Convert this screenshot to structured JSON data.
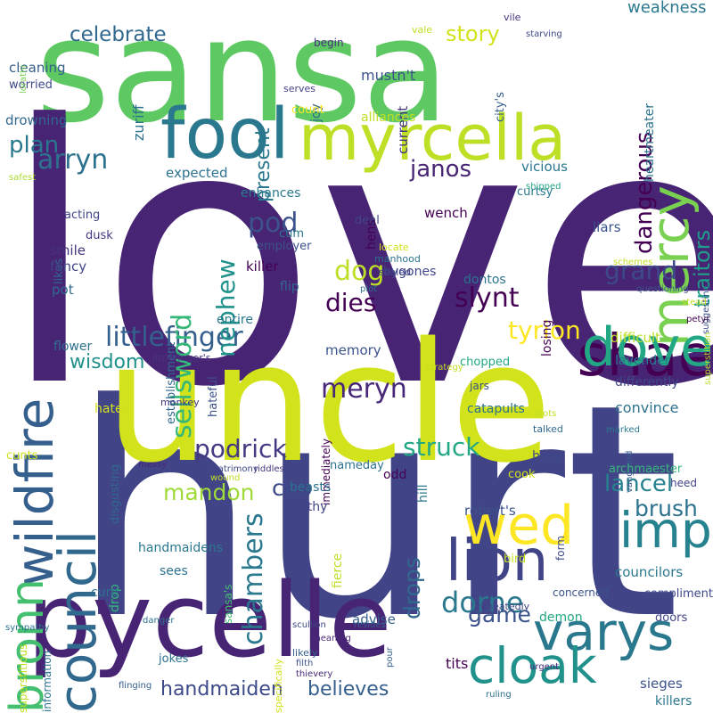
{
  "palette": {
    "purple": "#482475",
    "indigo": "#414487",
    "blue": "#355f8d",
    "steel": "#2a788e",
    "teal": "#21918c",
    "sea": "#22a884",
    "green": "#44bf70",
    "lime": "#7ad151",
    "yellow": "#d2e21b"
  },
  "words": [
    {
      "text": "sansa",
      "color": "#5ec962"
    },
    {
      "text": "love",
      "color": "#482475"
    },
    {
      "text": "hurt",
      "color": "#414487"
    },
    {
      "text": "uncle",
      "color": "#d2e21b"
    },
    {
      "text": "pycelle",
      "color": "#482475"
    },
    {
      "text": "fool",
      "color": "#2a788e"
    },
    {
      "text": "myrcella",
      "color": "#bddf26"
    },
    {
      "text": "mercy",
      "color": "#7ad151"
    },
    {
      "text": "wildfire",
      "color": "#355f8d"
    },
    {
      "text": "council",
      "color": "#31688e"
    },
    {
      "text": "bronn",
      "color": "#44bf70"
    },
    {
      "text": "shae",
      "color": "#440154"
    },
    {
      "text": "varys",
      "color": "#2a788e"
    },
    {
      "text": "dove",
      "color": "#22a884"
    },
    {
      "text": "imp",
      "color": "#26828e"
    },
    {
      "text": "wed",
      "color": "#fde725"
    },
    {
      "text": "lion",
      "color": "#414487"
    },
    {
      "text": "cloak",
      "color": "#21918c"
    },
    {
      "text": "dorne",
      "color": "#2a788e"
    },
    {
      "text": "littlefinger",
      "color": "#355f8d"
    },
    {
      "text": "podrick",
      "color": "#443983"
    },
    {
      "text": "struck",
      "color": "#22a884"
    },
    {
      "text": "meryn",
      "color": "#482878"
    },
    {
      "text": "tyrion",
      "color": "#fde725"
    },
    {
      "text": "lancel",
      "color": "#26828e"
    },
    {
      "text": "grand",
      "color": "#3e4989"
    },
    {
      "text": "dog",
      "color": "#bddf26"
    },
    {
      "text": "dies",
      "color": "#440154"
    },
    {
      "text": "slynt",
      "color": "#440154"
    },
    {
      "text": "janos",
      "color": "#482475"
    },
    {
      "text": "pod",
      "color": "#3b528b"
    },
    {
      "text": "nephew",
      "color": "#21918c"
    },
    {
      "text": "sellsword",
      "color": "#35b779"
    },
    {
      "text": "chambers",
      "color": "#2a788e"
    },
    {
      "text": "mandon",
      "color": "#a0da39"
    },
    {
      "text": "handmaiden",
      "color": "#3e4989"
    },
    {
      "text": "believes",
      "color": "#355f8d"
    },
    {
      "text": "game",
      "color": "#3b528b"
    },
    {
      "text": "cub",
      "color": "#3e4989"
    },
    {
      "text": "drops",
      "color": "#31688e"
    },
    {
      "text": "brush",
      "color": "#2c728e"
    },
    {
      "text": "wisdom",
      "color": "#21918c"
    },
    {
      "text": "arryn",
      "color": "#2c728e"
    },
    {
      "text": "plan",
      "color": "#2a788e"
    },
    {
      "text": "celebrate",
      "color": "#31688e"
    },
    {
      "text": "story",
      "color": "#d2e21b"
    },
    {
      "text": "dangerous",
      "color": "#440154"
    },
    {
      "text": "traitors",
      "color": "#1f9e89"
    },
    {
      "text": "present",
      "color": "#2a788e"
    },
    {
      "text": "weakness",
      "color": "#2a788e"
    },
    {
      "text": "zuriff",
      "color": "#2c728e"
    },
    {
      "text": "mustn't",
      "color": "#3b528b"
    },
    {
      "text": "current",
      "color": "#46337e"
    },
    {
      "text": "joy",
      "color": "#31688e"
    },
    {
      "text": "count",
      "color": "#fde725"
    },
    {
      "text": "cleaning",
      "color": "#355f8d"
    },
    {
      "text": "worried",
      "color": "#3e4989"
    },
    {
      "text": "lorathi",
      "color": "#7ad151"
    },
    {
      "text": "begin",
      "color": "#46337e"
    },
    {
      "text": "vile",
      "color": "#46337e"
    },
    {
      "text": "vale",
      "color": "#c2df23"
    },
    {
      "text": "starving",
      "color": "#3e4989"
    },
    {
      "text": "city's",
      "color": "#355f8d"
    },
    {
      "text": "heartmeater",
      "color": "#2c728e"
    },
    {
      "text": "serves",
      "color": "#414487"
    },
    {
      "text": "alliances",
      "color": "#c2df23"
    },
    {
      "text": "drowning",
      "color": "#31688e"
    },
    {
      "text": "expected",
      "color": "#2c728e"
    },
    {
      "text": "vicious",
      "color": "#2a788e"
    },
    {
      "text": "enhances",
      "color": "#2a788e"
    },
    {
      "text": "curtsy",
      "color": "#2a788e"
    },
    {
      "text": "safest",
      "color": "#addc30"
    },
    {
      "text": "likes",
      "color": "#31688e"
    },
    {
      "text": "acting",
      "color": "#414487"
    },
    {
      "text": "dusk",
      "color": "#443983"
    },
    {
      "text": "smile",
      "color": "#46337e"
    },
    {
      "text": "fancy",
      "color": "#414487"
    },
    {
      "text": "pot",
      "color": "#31688e"
    },
    {
      "text": "employer",
      "color": "#3b528b"
    },
    {
      "text": "killer",
      "color": "#440154"
    },
    {
      "text": "flip",
      "color": "#31688e"
    },
    {
      "text": "bygones",
      "color": "#414487"
    },
    {
      "text": "establishment",
      "color": "#31688e"
    },
    {
      "text": "cum",
      "color": "#2a788e"
    },
    {
      "text": "deal",
      "color": "#414487"
    },
    {
      "text": "hens",
      "color": "#440154"
    },
    {
      "text": "wench",
      "color": "#440154"
    },
    {
      "text": "liars",
      "color": "#3b528b"
    },
    {
      "text": "losing",
      "color": "#440154"
    },
    {
      "text": "dontos",
      "color": "#2c728e"
    },
    {
      "text": "shipped",
      "color": "#20a386"
    },
    {
      "text": "suggesting",
      "color": "#3b528b"
    },
    {
      "text": "superstition",
      "color": "#b5de2b"
    },
    {
      "text": "schemes",
      "color": "#c2df23"
    },
    {
      "text": "questioning",
      "color": "#3b528b"
    },
    {
      "text": "stead",
      "color": "#c2df23"
    },
    {
      "text": "locate",
      "color": "#d2e21b"
    },
    {
      "text": "manhood",
      "color": "#2c728e"
    },
    {
      "text": "sealed",
      "color": "#3e4989"
    },
    {
      "text": "plot",
      "color": "#2c728e"
    },
    {
      "text": "entire",
      "color": "#2a788e"
    },
    {
      "text": "petyr",
      "color": "#440154"
    },
    {
      "text": "flower",
      "color": "#2c728e"
    },
    {
      "text": "littlefinger's",
      "color": "#46337e"
    },
    {
      "text": "memory",
      "color": "#3b528b"
    },
    {
      "text": "immediately",
      "color": "#440154"
    },
    {
      "text": "strategy",
      "color": "#c2df23"
    },
    {
      "text": "difficult",
      "color": "#bddf26"
    },
    {
      "text": "lavender",
      "color": "#2a788e"
    },
    {
      "text": "differently",
      "color": "#3e4989"
    },
    {
      "text": "chopped",
      "color": "#22a884"
    },
    {
      "text": "jars",
      "color": "#3b528b"
    },
    {
      "text": "hates",
      "color": "#d2e21b"
    },
    {
      "text": "monkey",
      "color": "#46337e"
    },
    {
      "text": "hateful",
      "color": "#3b528b"
    },
    {
      "text": "catapults",
      "color": "#2c728e"
    },
    {
      "text": "convince",
      "color": "#2c728e"
    },
    {
      "text": "plots",
      "color": "#c2df23"
    },
    {
      "text": "vanguard",
      "color": "#355f8d"
    },
    {
      "text": "talked",
      "color": "#31688e"
    },
    {
      "text": "marked",
      "color": "#2a788e"
    },
    {
      "text": "cunts",
      "color": "#d2e21b"
    },
    {
      "text": "disgusting",
      "color": "#31688e"
    },
    {
      "text": "messy",
      "color": "#482878"
    },
    {
      "text": "matrimony",
      "color": "#3e4989"
    },
    {
      "text": "riddles",
      "color": "#46337e"
    },
    {
      "text": "wound",
      "color": "#c2df23"
    },
    {
      "text": "nameday",
      "color": "#2c728e"
    },
    {
      "text": "busy",
      "color": "#3e4989"
    },
    {
      "text": "archmaester",
      "color": "#35b779"
    },
    {
      "text": "heed",
      "color": "#414487"
    },
    {
      "text": "cook",
      "color": "#d2e21b"
    },
    {
      "text": "odd",
      "color": "#440154"
    },
    {
      "text": "beasts",
      "color": "#2c728e"
    },
    {
      "text": "filthy",
      "color": "#414487"
    },
    {
      "text": "hill",
      "color": "#2a788e"
    },
    {
      "text": "robert's",
      "color": "#3b528b"
    },
    {
      "text": "form",
      "color": "#3e4989"
    },
    {
      "text": "fierce",
      "color": "#bddf26"
    },
    {
      "text": "sansa's",
      "color": "#44bf70"
    },
    {
      "text": "information",
      "color": "#2c728e"
    },
    {
      "text": "handmaidens",
      "color": "#2a788e"
    },
    {
      "text": "drop",
      "color": "#35b779"
    },
    {
      "text": "sees",
      "color": "#2c728e"
    },
    {
      "text": "bird",
      "color": "#c2df23"
    },
    {
      "text": "councilors",
      "color": "#2a788e"
    },
    {
      "text": "compliment",
      "color": "#3e4989"
    },
    {
      "text": "cure",
      "color": "#2c728e"
    },
    {
      "text": "danger",
      "color": "#2c728e"
    },
    {
      "text": "repeatedly",
      "color": "#414487"
    },
    {
      "text": "demon",
      "color": "#22a884"
    },
    {
      "text": "concerned",
      "color": "#3b528b"
    },
    {
      "text": "doors",
      "color": "#414487"
    },
    {
      "text": "advise",
      "color": "#355f8d"
    },
    {
      "text": "scullion",
      "color": "#3e4989"
    },
    {
      "text": "meaning",
      "color": "#482878"
    },
    {
      "text": "resides",
      "color": "#355f8d"
    },
    {
      "text": "pour",
      "color": "#355f8d"
    },
    {
      "text": "tits",
      "color": "#440154"
    },
    {
      "text": "likely",
      "color": "#355f8d"
    },
    {
      "text": "sympathy",
      "color": "#2c728e"
    },
    {
      "text": "specifically",
      "color": "#d2e21b"
    },
    {
      "text": "jokes",
      "color": "#2c728e"
    },
    {
      "text": "filth",
      "color": "#3b528b"
    },
    {
      "text": "thievery",
      "color": "#482878"
    },
    {
      "text": "urgent",
      "color": "#482878"
    },
    {
      "text": "superstitious",
      "color": "#c2df23"
    },
    {
      "text": "flinging",
      "color": "#355f8d"
    },
    {
      "text": "sieges",
      "color": "#3b528b"
    },
    {
      "text": "killers",
      "color": "#2a788e"
    },
    {
      "text": "ruling",
      "color": "#2c728e"
    },
    {
      "text": "sell",
      "color": "#2c728e"
    }
  ]
}
